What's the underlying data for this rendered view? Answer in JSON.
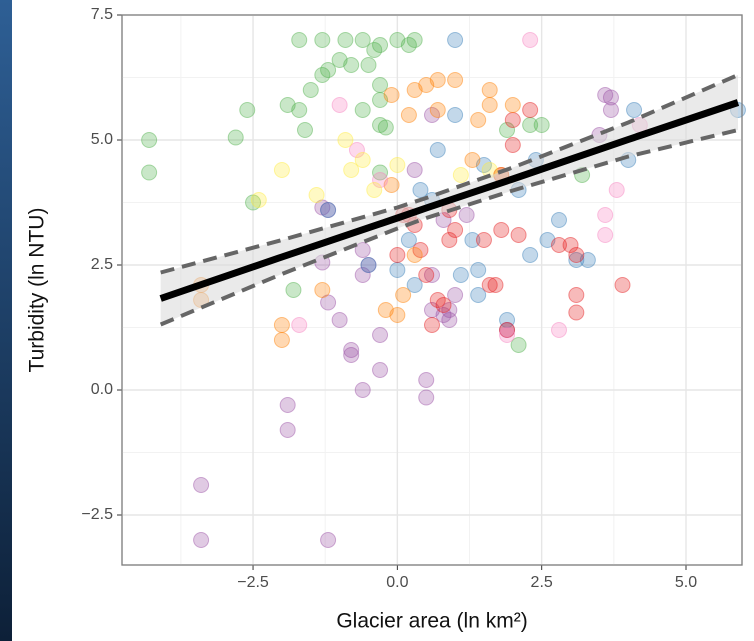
{
  "chart_data": {
    "type": "scatter",
    "x_label": "Glacier area (ln km²)",
    "y_label": "Turbidity (ln NTU)",
    "xlim": [
      -4.77,
      5.97
    ],
    "ylim": [
      -3.5,
      7.5
    ],
    "xticks": [
      {
        "value": -2.5,
        "label": "−2.5"
      },
      {
        "value": 0,
        "label": "0.0"
      },
      2.5,
      {
        "value": 5,
        "label": "5.0"
      }
    ],
    "yticks": [
      {
        "value": -2.5,
        "label": "−2.5"
      },
      {
        "value": 0,
        "label": "0.0"
      },
      2.5,
      {
        "value": 5,
        "label": "5.0"
      },
      7.5
    ],
    "x_minor": [
      -3.75,
      -1.25,
      1.25,
      3.75
    ],
    "y_minor": [
      -1.25,
      1.25,
      3.75,
      6.25
    ],
    "grid": true,
    "point_opacity": 0.3,
    "series": [
      {
        "color": "#4daf4a",
        "x": [
          -4.3,
          -4.3,
          -1.7,
          -1.3,
          -1.3,
          -1.2,
          -1.0,
          -0.9,
          -0.8,
          -0.6,
          -0.5,
          -0.4,
          -0.3,
          0.0,
          0.2,
          0.3,
          -0.3,
          -0.3,
          -0.3,
          -0.2,
          -0.6,
          -1.7,
          -1.6,
          -1.9,
          -1.5,
          -0.3,
          2.3,
          2.5,
          1.9,
          -2.8,
          -2.5,
          -2.6,
          -1.8,
          2.1,
          3.2
        ],
        "values": [
          5.0,
          4.35,
          7.0,
          7.0,
          6.3,
          6.4,
          6.6,
          7.0,
          6.5,
          7.0,
          6.5,
          6.8,
          6.9,
          7.0,
          6.9,
          7.0,
          6.1,
          5.8,
          5.3,
          5.25,
          5.6,
          5.6,
          5.2,
          5.7,
          6.0,
          4.35,
          5.3,
          5.3,
          5.2,
          5.05,
          3.75,
          5.6,
          2.0,
          0.9,
          4.3
        ]
      },
      {
        "color": "#984ea3",
        "x": [
          -3.4,
          -3.4,
          -1.2,
          -1.9,
          -1.9,
          -0.6,
          -0.8,
          -0.8,
          -0.3,
          -0.3,
          0.5,
          0.5,
          -1.2,
          -1.0,
          -0.5,
          -0.6,
          -1.3,
          -1.2,
          -1.3,
          0.6,
          0.8,
          0.9,
          0.6,
          0.8,
          1.2,
          0.3,
          0.6,
          3.6,
          3.7,
          3.7,
          3.5,
          1.9,
          1.0,
          0.9,
          -0.6
        ],
        "values": [
          -1.9,
          -3.0,
          -3.0,
          -0.3,
          -0.8,
          0.0,
          0.7,
          0.8,
          0.4,
          1.1,
          0.2,
          -0.15,
          1.75,
          1.4,
          2.5,
          2.8,
          2.55,
          3.6,
          3.65,
          1.6,
          1.5,
          1.6,
          2.3,
          3.4,
          3.5,
          4.4,
          5.5,
          5.9,
          5.6,
          5.85,
          5.1,
          1.2,
          1.9,
          1.4,
          2.3
        ]
      },
      {
        "color": "#377eb8",
        "x": [
          1.0,
          -1.2,
          -0.5,
          0.2,
          0.4,
          0.7,
          1.0,
          1.3,
          1.4,
          1.9,
          2.3,
          2.6,
          2.8,
          3.1,
          3.3,
          2.1,
          2.4,
          1.5,
          4.0,
          4.1,
          5.9,
          0.0,
          0.3,
          1.1,
          1.4,
          0.6
        ],
        "values": [
          7.0,
          3.6,
          2.5,
          3.0,
          4.0,
          4.8,
          5.5,
          3.0,
          2.4,
          1.4,
          2.7,
          3.0,
          3.4,
          2.6,
          2.6,
          4.0,
          4.6,
          4.5,
          4.6,
          5.6,
          5.6,
          2.4,
          2.1,
          2.3,
          1.9,
          3.8
        ]
      },
      {
        "color": "#e41a1c",
        "x": [
          0.6,
          0.7,
          0.8,
          0.5,
          0.4,
          0.9,
          1.0,
          1.5,
          1.8,
          1.6,
          1.7,
          1.9,
          2.3,
          2.0,
          2.0,
          1.8,
          2.8,
          3.0,
          3.1,
          3.1,
          3.1,
          3.9,
          2.1,
          0.3,
          0.2,
          0.1,
          0.0,
          0.9
        ],
        "values": [
          1.3,
          1.8,
          1.7,
          2.3,
          2.8,
          3.0,
          3.2,
          3.0,
          3.2,
          2.1,
          2.1,
          1.2,
          5.6,
          5.4,
          4.9,
          4.3,
          2.9,
          2.9,
          2.7,
          1.9,
          1.55,
          2.1,
          3.1,
          3.3,
          3.5,
          3.5,
          2.7,
          3.6
        ]
      },
      {
        "color": "#ff7f00",
        "x": [
          -3.4,
          -3.4,
          -2.0,
          -2.0,
          -1.3,
          -0.2,
          0.0,
          0.1,
          0.3,
          0.2,
          0.3,
          0.5,
          0.7,
          1.0,
          1.6,
          1.6,
          1.4,
          2.0,
          -0.1,
          0.7,
          1.3,
          1.8,
          -0.1
        ],
        "values": [
          1.8,
          2.1,
          1.0,
          1.3,
          2.0,
          1.6,
          1.5,
          1.9,
          2.7,
          5.5,
          6.0,
          6.1,
          6.2,
          6.2,
          6.0,
          5.7,
          5.4,
          5.7,
          4.1,
          5.6,
          4.6,
          4.3,
          5.9
        ]
      },
      {
        "color": "#f781bf",
        "x": [
          2.3,
          -1.0,
          -0.7,
          -1.7,
          -0.3,
          3.6,
          3.6,
          3.8,
          2.8,
          1.9,
          4.2
        ],
        "values": [
          7.0,
          5.7,
          4.8,
          1.3,
          4.2,
          3.1,
          3.5,
          4.0,
          1.2,
          1.1,
          5.3
        ]
      },
      {
        "color": "#ffeb3b",
        "x": [
          -0.8,
          -0.6,
          -0.4,
          -1.4,
          0.0,
          -2.0,
          -2.4,
          -0.9,
          1.1,
          1.6
        ],
        "values": [
          4.4,
          4.6,
          4.0,
          3.9,
          4.5,
          4.4,
          3.8,
          5.0,
          4.3,
          4.4
        ]
      }
    ],
    "fit": {
      "color": "#000000",
      "band_color": "#d9d9d9",
      "ci_color": "#666666",
      "x": [
        -4.1,
        -2.0,
        0.0,
        0.5,
        2.0,
        4.0,
        5.9
      ],
      "values": [
        1.83,
        2.66,
        3.44,
        3.64,
        4.22,
        5.01,
        5.75
      ],
      "upper": [
        2.35,
        3.0,
        3.65,
        3.84,
        4.45,
        5.35,
        6.3
      ],
      "lower": [
        1.31,
        2.32,
        3.23,
        3.44,
        3.99,
        4.67,
        5.2
      ]
    }
  }
}
